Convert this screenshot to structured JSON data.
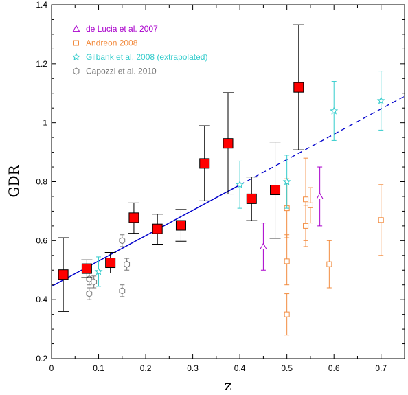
{
  "chart_data": {
    "type": "scatter",
    "xlabel": "z",
    "ylabel": "GDR",
    "xlim": [
      0,
      0.75
    ],
    "ylim": [
      0.2,
      1.4
    ],
    "x_ticks": [
      {
        "value": 0,
        "label": "0"
      },
      {
        "value": 0.1,
        "label": "0.1"
      },
      {
        "value": 0.2,
        "label": "0.2"
      },
      {
        "value": 0.3,
        "label": "0.3"
      },
      {
        "value": 0.4,
        "label": "0.4"
      },
      {
        "value": 0.5,
        "label": "0.5"
      },
      {
        "value": 0.6,
        "label": "0.6"
      },
      {
        "value": 0.7,
        "label": "0.7"
      }
    ],
    "y_ticks": [
      {
        "value": 0.2,
        "label": "0.2"
      },
      {
        "value": 0.4,
        "label": "0.4"
      },
      {
        "value": 0.6,
        "label": "0.6"
      },
      {
        "value": 0.8,
        "label": "0.8"
      },
      {
        "value": 1.0,
        "label": "1"
      },
      {
        "value": 1.2,
        "label": "1.2"
      },
      {
        "value": 1.4,
        "label": "1.4"
      }
    ],
    "grid": false,
    "legend_position": "top-left",
    "fit_line": {
      "color": "#0000cc",
      "solid_range": [
        0,
        0.4
      ],
      "dashed_range": [
        0.4,
        0.75
      ],
      "intercept": 0.445,
      "slope": 0.86
    },
    "series": [
      {
        "name": "",
        "marker": "square-filled",
        "color": "#ff0000",
        "edge_color": "#000000",
        "error_color": "#000000",
        "points": [
          {
            "x": 0.025,
            "y": 0.485,
            "lo": 0.36,
            "hi": 0.61
          },
          {
            "x": 0.075,
            "y": 0.505,
            "lo": 0.475,
            "hi": 0.535
          },
          {
            "x": 0.125,
            "y": 0.525,
            "lo": 0.49,
            "hi": 0.56
          },
          {
            "x": 0.175,
            "y": 0.678,
            "lo": 0.625,
            "hi": 0.728
          },
          {
            "x": 0.225,
            "y": 0.64,
            "lo": 0.588,
            "hi": 0.69
          },
          {
            "x": 0.275,
            "y": 0.652,
            "lo": 0.598,
            "hi": 0.706
          },
          {
            "x": 0.325,
            "y": 0.862,
            "lo": 0.735,
            "hi": 0.99
          },
          {
            "x": 0.375,
            "y": 0.93,
            "lo": 0.758,
            "hi": 1.102
          },
          {
            "x": 0.425,
            "y": 0.742,
            "lo": 0.668,
            "hi": 0.816
          },
          {
            "x": 0.475,
            "y": 0.772,
            "lo": 0.608,
            "hi": 0.935
          },
          {
            "x": 0.525,
            "y": 1.12,
            "lo": 0.908,
            "hi": 1.332
          }
        ]
      },
      {
        "name": "de Lucia et al. 2007",
        "marker": "triangle",
        "color": "#aa00cc",
        "points": [
          {
            "x": 0.45,
            "y": 0.58,
            "lo": 0.5,
            "hi": 0.66
          },
          {
            "x": 0.57,
            "y": 0.75,
            "lo": 0.65,
            "hi": 0.85
          }
        ]
      },
      {
        "name": "Andreon 2008",
        "marker": "square-open",
        "color": "#f28c40",
        "points": [
          {
            "x": 0.5,
            "y": 0.71,
            "lo": 0.61,
            "hi": 0.81
          },
          {
            "x": 0.5,
            "y": 0.53,
            "lo": 0.45,
            "hi": 0.62
          },
          {
            "x": 0.5,
            "y": 0.35,
            "lo": 0.28,
            "hi": 0.42
          },
          {
            "x": 0.54,
            "y": 0.74,
            "lo": 0.6,
            "hi": 0.88
          },
          {
            "x": 0.54,
            "y": 0.65,
            "lo": 0.58,
            "hi": 0.72
          },
          {
            "x": 0.55,
            "y": 0.72,
            "lo": 0.66,
            "hi": 0.78
          },
          {
            "x": 0.59,
            "y": 0.52,
            "lo": 0.44,
            "hi": 0.6
          },
          {
            "x": 0.7,
            "y": 0.67,
            "lo": 0.55,
            "hi": 0.79
          }
        ]
      },
      {
        "name": "Gilbank et al. 2008 (extrapolated)",
        "marker": "star",
        "color": "#33cccc",
        "points": [
          {
            "x": 0.1,
            "y": 0.495,
            "lo": 0.445,
            "hi": 0.545
          },
          {
            "x": 0.4,
            "y": 0.79,
            "lo": 0.71,
            "hi": 0.87
          },
          {
            "x": 0.5,
            "y": 0.8,
            "lo": 0.71,
            "hi": 0.89
          },
          {
            "x": 0.6,
            "y": 1.04,
            "lo": 0.94,
            "hi": 1.14
          },
          {
            "x": 0.7,
            "y": 1.075,
            "lo": 0.975,
            "hi": 1.175
          }
        ]
      },
      {
        "name": "Capozzi et al. 2010",
        "marker": "hexagon",
        "color": "#777777",
        "points": [
          {
            "x": 0.08,
            "y": 0.47,
            "lo": 0.45,
            "hi": 0.49
          },
          {
            "x": 0.09,
            "y": 0.46,
            "lo": 0.44,
            "hi": 0.48
          },
          {
            "x": 0.08,
            "y": 0.42,
            "lo": 0.4,
            "hi": 0.44
          },
          {
            "x": 0.15,
            "y": 0.6,
            "lo": 0.58,
            "hi": 0.62
          },
          {
            "x": 0.16,
            "y": 0.52,
            "lo": 0.5,
            "hi": 0.54
          },
          {
            "x": 0.15,
            "y": 0.43,
            "lo": 0.41,
            "hi": 0.45
          }
        ]
      }
    ]
  }
}
